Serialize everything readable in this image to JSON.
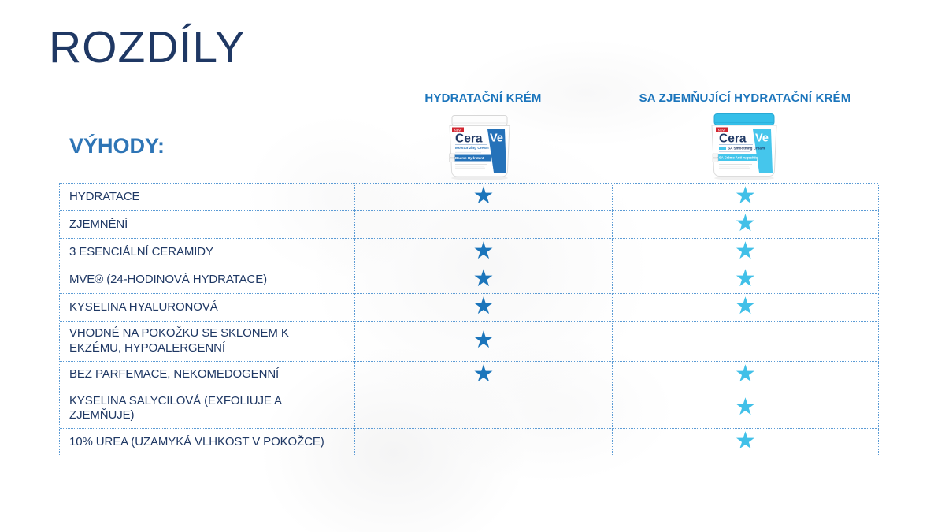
{
  "page": {
    "title": "ROZDÍLY",
    "benefits_label": "VÝHODY:"
  },
  "products": [
    {
      "name": "HYDRATAČNÍ KRÉM",
      "star_color": "#1B75BB",
      "jar": {
        "badge": "NEW",
        "brand_cera": "Cera",
        "brand_ve": "Ve",
        "subtitle": "Moisturizing Cream",
        "band": "Baume Hydratant"
      }
    },
    {
      "name": "SA ZJEMŇUJÍCÍ HYDRATAČNÍ KRÉM",
      "star_color": "#41C0E8",
      "jar": {
        "badge": "NEW",
        "brand_cera": "Cera",
        "brand_ve": "Ve",
        "subtitle": "SA Smoothing Cream",
        "band": "SA Crème Anti-rugosités"
      }
    }
  ],
  "table": {
    "rows": [
      {
        "label": "HYDRATACE",
        "product1": true,
        "product2": true
      },
      {
        "label": "ZJEMNĚNÍ",
        "product1": false,
        "product2": true
      },
      {
        "label": "3 ESENCIÁLNÍ CERAMIDY",
        "product1": true,
        "product2": true
      },
      {
        "label": "MVE® (24-HODINOVÁ HYDRATACE)",
        "product1": true,
        "product2": true
      },
      {
        "label": "KYSELINA HYALURONOVÁ",
        "product1": true,
        "product2": true
      },
      {
        "label": "VHODNÉ NA POKOŽKU SE SKLONEM K EKZÉMU, HYPOALERGENNÍ",
        "product1": true,
        "product2": false
      },
      {
        "label": "BEZ PARFEMACE, NEKOMEDOGENNÍ",
        "product1": true,
        "product2": true
      },
      {
        "label": "KYSELINA SALYCILOVÁ (EXFOLIUJE A ZJEMŇUJE)",
        "product1": false,
        "product2": true
      },
      {
        "label": "10% UREA (UZAMYKÁ VLHKOST V POKOŽCE)",
        "product1": false,
        "product2": true
      }
    ]
  },
  "icons": {
    "star": "★"
  },
  "colors": {
    "title": "#1F3864",
    "benefits": "#2E75B6",
    "header": "#1B75BC",
    "row_text": "#1F3864",
    "border": "#5B9BD5",
    "star_product1": "#1B75BB",
    "star_product2": "#41C0E8",
    "jar_blue": "#2572B9",
    "jar_cyan": "#35BFE9",
    "badge_red": "#D22630"
  }
}
